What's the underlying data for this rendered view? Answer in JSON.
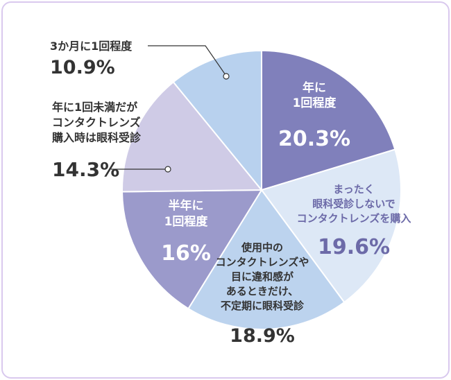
{
  "chart_data": {
    "type": "pie",
    "slices": [
      {
        "label_lines": [
          "年に",
          "1回程度"
        ],
        "value": 20.3,
        "display": "20.3%",
        "color": "#8080bb",
        "text_color": "#ffffff"
      },
      {
        "label_lines": [
          "まったく",
          "眼科受診しないで",
          "コンタクトレンズを購入"
        ],
        "value": 19.6,
        "display": "19.6%",
        "color": "#dde8f6",
        "text_color": "#6c6aa8"
      },
      {
        "label_lines": [
          "使用中の",
          "コンタクトレンズや",
          "目に違和感が",
          "あるときだけ、",
          "不定期に眼科受診"
        ],
        "value": 18.9,
        "display": "18.9%",
        "color": "#bcd3ee",
        "text_color": "#333333"
      },
      {
        "label_lines": [
          "半年に",
          "1回程度"
        ],
        "value": 16,
        "display": "16%",
        "color": "#9b9acb",
        "text_color": "#ffffff"
      },
      {
        "label_lines": [
          "年に1回未満だが",
          "コンタクトレンズ",
          "購入時は眼科受診"
        ],
        "value": 14.3,
        "display": "14.3%",
        "color": "#cfcbe6",
        "text_color": "#333333"
      },
      {
        "label_lines": [
          "3か月に1回程度"
        ],
        "value": 10.9,
        "display": "10.9%",
        "color": "#b8d1ee",
        "text_color": "#333333"
      }
    ],
    "start_angle_deg": 0,
    "direction": "clockwise"
  }
}
